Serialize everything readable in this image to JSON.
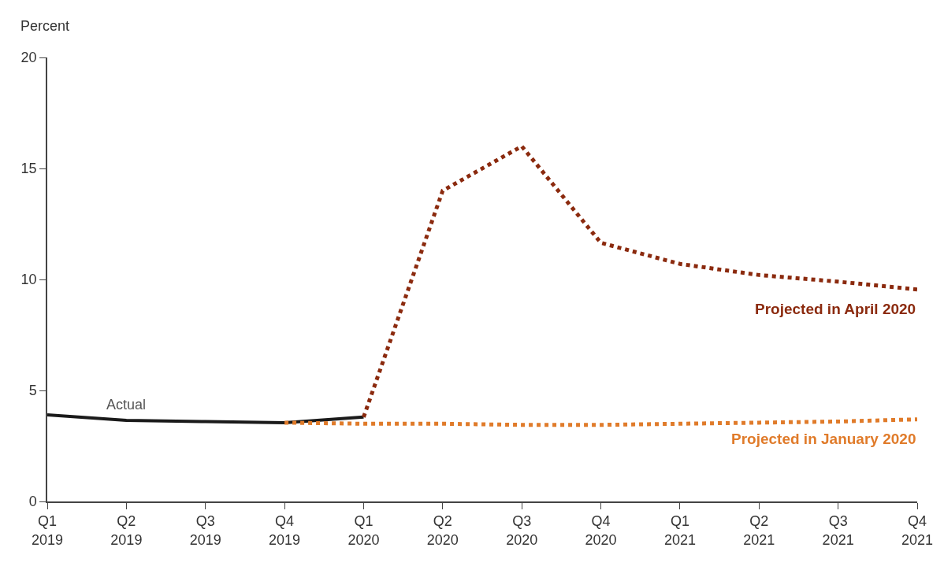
{
  "chart_data": {
    "type": "line",
    "ylabel": "Percent",
    "categories": [
      "Q1\n2019",
      "Q2\n2019",
      "Q3\n2019",
      "Q4\n2019",
      "Q1\n2020",
      "Q2\n2020",
      "Q3\n2020",
      "Q4\n2020",
      "Q1\n2021",
      "Q2\n2021",
      "Q3\n2021",
      "Q4\n2021"
    ],
    "ylim": [
      0,
      20
    ],
    "yticks": [
      0,
      5,
      10,
      15,
      20
    ],
    "grid": false,
    "legend": false,
    "series": [
      {
        "name": "Actual",
        "color": "#1a1a1a",
        "line_style": "solid",
        "values": [
          3.9,
          3.65,
          3.6,
          3.55,
          3.8,
          null,
          null,
          null,
          null,
          null,
          null,
          null
        ]
      },
      {
        "name": "Projected in April 2020",
        "color": "#8b2a0e",
        "line_style": "dotted",
        "values": [
          null,
          null,
          null,
          null,
          3.8,
          14.0,
          16.0,
          11.65,
          10.7,
          10.2,
          9.9,
          9.55
        ]
      },
      {
        "name": "Projected in January 2020",
        "color": "#e07b2a",
        "line_style": "dotted",
        "values": [
          null,
          null,
          null,
          3.55,
          3.5,
          3.5,
          3.45,
          3.45,
          3.5,
          3.55,
          3.6,
          3.7
        ]
      }
    ]
  }
}
